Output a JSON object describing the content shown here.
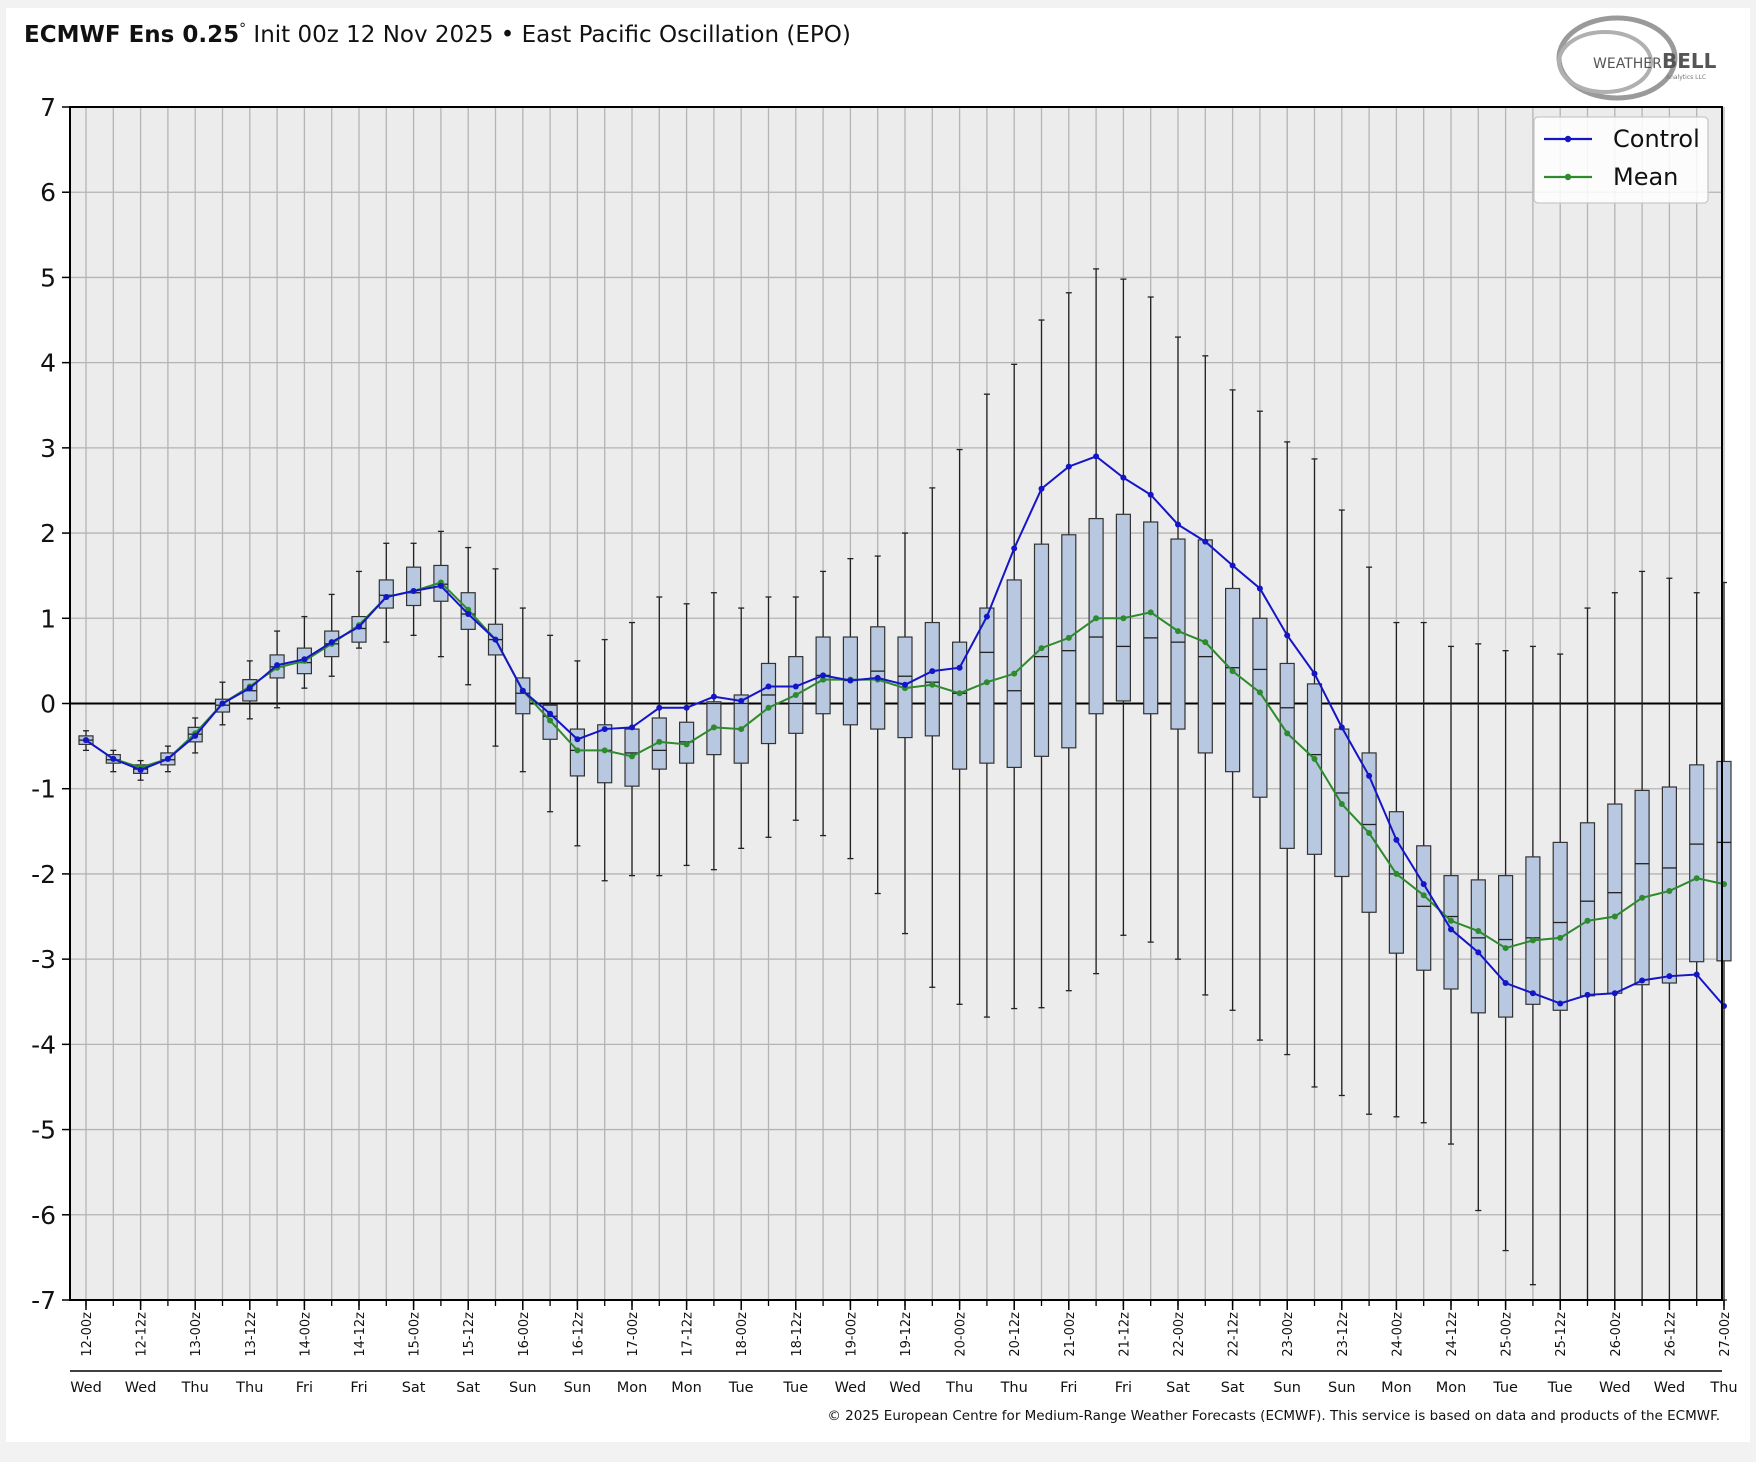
{
  "header": {
    "title_bold": "ECMWF Ens 0.25",
    "title_degree": "°",
    "title_rest": " Init 00z 12 Nov 2025 • East Pacific Oscillation (EPO)"
  },
  "logo": {
    "text_a": "WEATHER",
    "text_b": "BELL",
    "tagline": "Analytics LLC"
  },
  "footer": {
    "copyright": "© 2025 European Centre for Medium-Range Weather Forecasts (ECMWF). This service is based on data and products of the ECMWF."
  },
  "colors": {
    "control": "#1515c8",
    "mean": "#2d8a2d",
    "box_fill": "#b8c8e0",
    "box_stroke": "#333333",
    "plot_bg": "#ececec",
    "grid": "#b4b4b4"
  },
  "chart_data": {
    "type": "box",
    "title": "",
    "xlabel": "",
    "ylabel": "",
    "ylim": [
      -7,
      7
    ],
    "yticks": [
      7,
      6,
      5,
      4,
      3,
      2,
      1,
      0,
      -1,
      -2,
      -3,
      -4,
      -5,
      -6,
      -7
    ],
    "grid": true,
    "legend_position": "top-right",
    "legend": [
      "Control",
      "Mean"
    ],
    "x_labels": [
      "12-00z",
      "12-12z",
      "13-00z",
      "13-12z",
      "14-00z",
      "14-12z",
      "15-00z",
      "15-12z",
      "16-00z",
      "16-12z",
      "17-00z",
      "17-12z",
      "18-00z",
      "18-12z",
      "19-00z",
      "19-12z",
      "20-00z",
      "20-12z",
      "21-00z",
      "21-12z",
      "22-00z",
      "22-12z",
      "23-00z",
      "23-12z",
      "24-00z",
      "24-12z",
      "25-00z",
      "25-12z",
      "26-00z",
      "26-12z",
      "27-00z"
    ],
    "day_labels": [
      "Wed",
      "Wed",
      "Thu",
      "Thu",
      "Fri",
      "Fri",
      "Sat",
      "Sat",
      "Sun",
      "Sun",
      "Mon",
      "Mon",
      "Tue",
      "Tue",
      "Wed",
      "Wed",
      "Thu",
      "Thu",
      "Fri",
      "Fri",
      "Sat",
      "Sat",
      "Sun",
      "Sun",
      "Mon",
      "Mon",
      "Tue",
      "Tue",
      "Wed",
      "Wed",
      "Thu"
    ],
    "x_step_hours": 6,
    "series": [
      {
        "name": "Control",
        "values": [
          -0.43,
          -0.65,
          -0.78,
          -0.65,
          -0.38,
          0.0,
          0.18,
          0.45,
          0.52,
          0.72,
          0.9,
          1.25,
          1.32,
          1.38,
          1.05,
          0.75,
          0.15,
          -0.12,
          -0.42,
          -0.3,
          -0.28,
          -0.05,
          -0.05,
          0.08,
          0.03,
          0.2,
          0.2,
          0.33,
          0.27,
          0.3,
          0.22,
          0.38,
          0.42,
          1.02,
          1.82,
          2.52,
          2.78,
          2.9,
          2.65,
          2.45,
          2.1,
          1.9,
          1.62,
          1.35,
          0.8,
          0.35,
          -0.28,
          -0.85,
          -1.6,
          -2.12,
          -2.65,
          -2.92,
          -3.28,
          -3.4,
          -3.52,
          -3.42,
          -3.4,
          -3.25,
          -3.2,
          -3.18,
          -3.55
        ]
      },
      {
        "name": "Mean",
        "values": [
          -0.43,
          -0.65,
          -0.75,
          -0.65,
          -0.35,
          0.0,
          0.2,
          0.42,
          0.5,
          0.7,
          0.92,
          1.25,
          1.32,
          1.42,
          1.1,
          0.75,
          0.15,
          -0.2,
          -0.55,
          -0.55,
          -0.62,
          -0.45,
          -0.48,
          -0.28,
          -0.3,
          -0.05,
          0.1,
          0.28,
          0.28,
          0.28,
          0.18,
          0.22,
          0.12,
          0.25,
          0.35,
          0.65,
          0.77,
          1.0,
          1.0,
          1.07,
          0.85,
          0.72,
          0.38,
          0.13,
          -0.35,
          -0.65,
          -1.18,
          -1.52,
          -2.0,
          -2.25,
          -2.55,
          -2.67,
          -2.87,
          -2.78,
          -2.75,
          -2.55,
          -2.5,
          -2.28,
          -2.2,
          -2.05,
          -2.12
        ]
      }
    ],
    "boxes": {
      "min": [
        -0.55,
        -0.8,
        -0.9,
        -0.8,
        -0.58,
        -0.25,
        -0.18,
        -0.05,
        0.18,
        0.32,
        0.65,
        0.72,
        0.8,
        0.55,
        0.22,
        -0.5,
        -0.8,
        -1.27,
        -1.67,
        -2.08,
        -2.02,
        -2.02,
        -1.9,
        -1.95,
        -1.7,
        -1.57,
        -1.37,
        -1.55,
        -1.82,
        -2.23,
        -2.7,
        -3.33,
        -3.53,
        -3.68,
        -3.58,
        -3.57,
        -3.37,
        -3.17,
        -2.72,
        -2.8,
        -3.0,
        -3.42,
        -3.6,
        -3.95,
        -4.12,
        -4.5,
        -4.6,
        -4.82,
        -4.85,
        -4.92,
        -5.17,
        -5.95,
        -6.42,
        -6.82,
        -7.0,
        -7.0,
        -7.0,
        -7.0,
        -7.0,
        -7.0,
        -7.0
      ],
      "q1": [
        -0.48,
        -0.7,
        -0.82,
        -0.72,
        -0.45,
        -0.1,
        0.03,
        0.3,
        0.35,
        0.55,
        0.72,
        1.12,
        1.15,
        1.2,
        0.87,
        0.57,
        -0.12,
        -0.42,
        -0.85,
        -0.93,
        -0.97,
        -0.77,
        -0.7,
        -0.6,
        -0.7,
        -0.47,
        -0.35,
        -0.12,
        -0.25,
        -0.3,
        -0.4,
        -0.38,
        -0.77,
        -0.7,
        -0.75,
        -0.62,
        -0.52,
        -0.12,
        0.03,
        -0.12,
        -0.3,
        -0.58,
        -0.8,
        -1.1,
        -1.7,
        -1.77,
        -2.03,
        -2.45,
        -2.93,
        -3.13,
        -3.35,
        -3.63,
        -3.68,
        -3.53,
        -3.6,
        -3.43,
        -3.4,
        -3.3,
        -3.28,
        -3.03,
        -3.02
      ],
      "median": [
        -0.43,
        -0.66,
        -0.77,
        -0.66,
        -0.36,
        -0.02,
        0.15,
        0.43,
        0.48,
        0.7,
        0.88,
        1.27,
        1.3,
        1.4,
        1.05,
        0.75,
        0.12,
        -0.15,
        -0.55,
        -0.55,
        -0.58,
        -0.55,
        -0.45,
        0.0,
        0.0,
        0.1,
        0.0,
        0.33,
        0.27,
        0.38,
        0.32,
        0.25,
        0.12,
        0.6,
        0.15,
        0.55,
        0.62,
        0.78,
        0.67,
        0.77,
        0.72,
        0.55,
        0.42,
        0.4,
        -0.05,
        -0.6,
        -1.05,
        -1.42,
        -2.0,
        -2.38,
        -2.5,
        -2.75,
        -2.77,
        -2.75,
        -2.57,
        -2.32,
        -2.22,
        -1.88,
        -1.93,
        -1.65,
        -1.63
      ],
      "q3": [
        -0.38,
        -0.6,
        -0.72,
        -0.58,
        -0.28,
        0.05,
        0.28,
        0.57,
        0.65,
        0.85,
        1.02,
        1.45,
        1.6,
        1.62,
        1.3,
        0.93,
        0.3,
        -0.02,
        -0.3,
        -0.25,
        -0.3,
        -0.17,
        -0.22,
        0.02,
        0.1,
        0.47,
        0.55,
        0.78,
        0.78,
        0.9,
        0.78,
        0.95,
        0.72,
        1.12,
        1.45,
        1.87,
        1.98,
        2.17,
        2.22,
        2.13,
        1.93,
        1.92,
        1.35,
        1.0,
        0.47,
        0.23,
        -0.3,
        -0.58,
        -1.27,
        -1.67,
        -2.02,
        -2.07,
        -2.02,
        -1.8,
        -1.63,
        -1.4,
        -1.18,
        -1.02,
        -0.98,
        -0.72,
        -0.68
      ],
      "max": [
        -0.32,
        -0.55,
        -0.67,
        -0.5,
        -0.17,
        0.25,
        0.5,
        0.85,
        1.02,
        1.28,
        1.55,
        1.88,
        1.88,
        2.02,
        1.83,
        1.58,
        1.12,
        0.8,
        0.5,
        0.75,
        0.95,
        1.25,
        1.17,
        1.3,
        1.12,
        1.25,
        1.25,
        1.55,
        1.7,
        1.73,
        2.0,
        2.53,
        2.98,
        3.63,
        3.98,
        4.5,
        4.82,
        5.1,
        4.98,
        4.77,
        4.3,
        4.08,
        3.68,
        3.43,
        3.07,
        2.87,
        2.27,
        1.6,
        0.95,
        0.95,
        0.67,
        0.7,
        0.62,
        0.67,
        0.58,
        1.12,
        1.3,
        1.55,
        1.47,
        1.3,
        1.42
      ]
    }
  }
}
